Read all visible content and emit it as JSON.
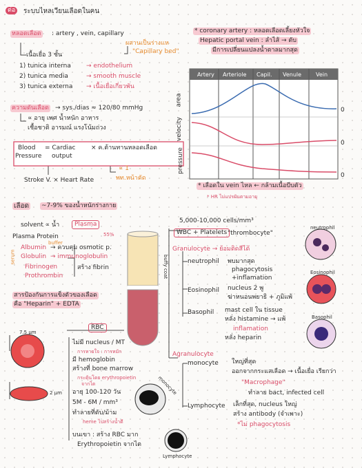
{
  "header": {
    "badge": "ต่อ",
    "title": "ระบบไหลเวียนเลือดในคน"
  },
  "vessels": {
    "heading": "หลอดเลือด",
    "types": ": artery , vein, capillary",
    "bed_note": "ผสานเป็นร่างแห",
    "bed": "\"Capillary bed\"",
    "layers_title": "เนื้อเยื่อ 3 ชั้น",
    "layers": [
      {
        "name": "1) tunica interna",
        "detail": "→ endothelium"
      },
      {
        "name": "2) tunica media",
        "detail": "→ smooth muscle"
      },
      {
        "name": "3) tunica externa",
        "detail": "→ เนื้อเยื่อเกี่ยวพัน"
      }
    ]
  },
  "pressure": {
    "heading": "ความดันเลือด",
    "value": "→ sys./dias ≈ 120/80 mmHg",
    "factors": [
      "∝ อายุ เพศ น้ำหนัก อาหาร",
      "เชื้อชาติ อารมณ์ แรงโน้มถ่วง"
    ],
    "formula": {
      "blood": "Blood",
      "pressure": "Pressure",
      "cardiac": "= Cardiac",
      "output": "output",
      "resistance": "× ค.ต้านทานหลอดเลือด",
      "prop": "∝ 1",
      "area": "พท.หน้าตัด",
      "stroke": "Stroke V. × Heart Rate"
    }
  },
  "right_notes": {
    "coronary": "* coronary artery : หลอดเลือดเลี้ยงหัวใจ",
    "hepatic": "Hepatic portal vein : ลำไส้ → ตับ",
    "hepatic_note": "มีการเปลี่ยนแปลงน้ำตาลมากสุด"
  },
  "graph": {
    "columns": [
      "Artery",
      "Arteriole",
      "Capil.",
      "Venule",
      "Vein"
    ],
    "axes": [
      "area",
      "velocity",
      "pressure"
    ],
    "zeros": [
      "0",
      "0",
      "0"
    ],
    "notes": [
      "* เลือดใน vein ไหล ← กล้ามเนื้อบีบตัว",
      "* HR ไม่แปรผันตามอายุ"
    ]
  },
  "blood": {
    "heading": "เลือด",
    "heading_note": "~7-9% ของน้ำหนักร่างกาย",
    "solvent": "solvent ∝ น้ำ",
    "plasma": "Plasma",
    "plasma_pct": "55%",
    "protein": "Plasma Protein",
    "buffer": "buffer",
    "serum": "serum",
    "proteins": [
      {
        "name": "Albumin",
        "detail": "→ ควบคุม osmotic p."
      },
      {
        "name": "Globulin",
        "detail": "→ immunoglobulin"
      },
      {
        "name": "Fibrinogen",
        "detail": ""
      },
      {
        "name": "Prothrombin",
        "detail": ""
      }
    ],
    "fibrin": "สร้าง fibrin",
    "anticoag": "สารป้องกันการแข็งตัวของเลือด",
    "anticoag2": "คือ \"Heparin\" + EDTA",
    "buffy": "buffy coat"
  },
  "wbc": {
    "count": "5,000-10,000 cells/mm³",
    "label": "WBC + Platelets",
    "thrombo": "\"thrombocyte\"",
    "granulocyte": "Granulocyte → ย้อมติดสีได้",
    "neutrophil": {
      "name": "neutrophil",
      "lines": [
        "พบมากสุด",
        "phagocytosis",
        "+inflamation"
      ]
    },
    "eosinophil": {
      "name": "Eosinophil",
      "lines": [
        "nucleus 2 พู",
        "ฆ่าหนอนพยาธิ + ภูมิแพ้"
      ]
    },
    "basophil": {
      "name": "Basophil",
      "lines": [
        "mast cell ใน tissue",
        "หลั่ง histamine → แพ้",
        "inflamation",
        "หลั่ง heparin"
      ]
    },
    "agranulocyte": "Agranulocyte",
    "monocyte": {
      "name": "monocyte",
      "lines": [
        "ใหญ่ที่สุด",
        "ออกจากกระแสเลือด → เนื้อเยื่อ เรียกว่า",
        "\"Macrophage\"",
        "ทำลาย bact, infected cell"
      ]
    },
    "lymphocyte": {
      "name": "Lymphocyte",
      "lines": [
        "เล็กที่สุด, nucleus ใหญ่",
        "สร้าง antibody (จำเพาะ)",
        "*ไม่ phagocytosis"
      ]
    },
    "cell_labels": [
      "neutrophil",
      "Eosinophil",
      "Basophil",
      "monocyte",
      "Lymphocyte"
    ]
  },
  "rbc": {
    "label": "RBC",
    "lines": [
      "ไม่มี nucleus / MT",
      "การหายใจ : การหมัก",
      "มี hemoglobin",
      "สร้างที่ bone marrow",
      "กระตุ้นโดย erythropoietin",
      "จากไต",
      "อายุ 100-120 วัน",
      "5M - 6M / mm³",
      "ทำลายที่ตับ/ม้าม",
      "heme ไปสร้างน้ำดี",
      "บนเขา : สร้าง RBC มาก",
      "Erythropoietin จากไต"
    ],
    "width": "7.5 µm",
    "thick": "2 µm"
  }
}
